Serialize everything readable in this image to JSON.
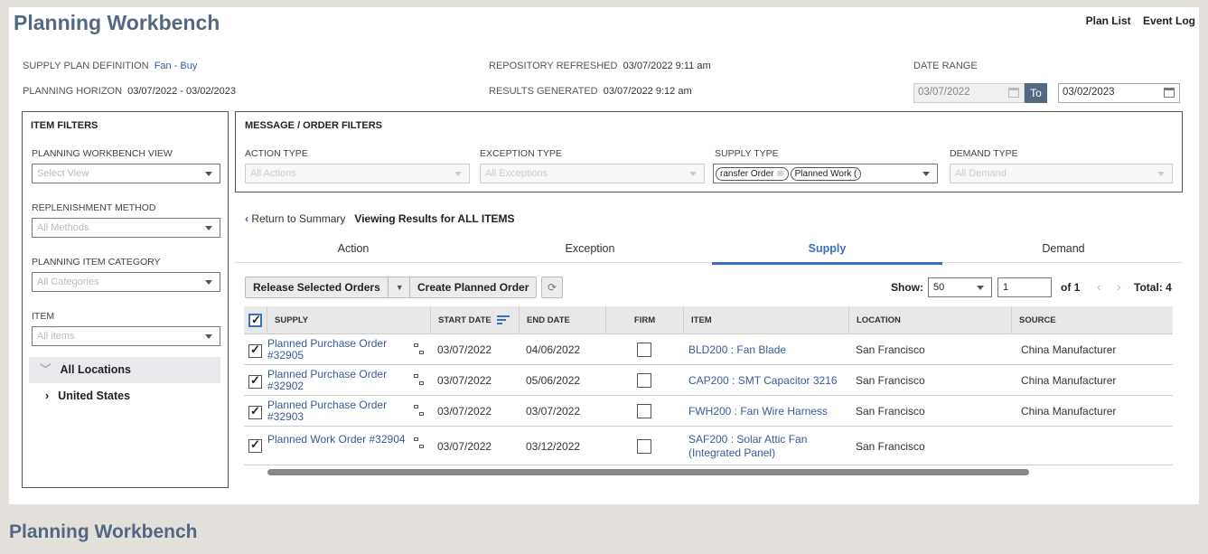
{
  "header": {
    "title": "Planning Workbench",
    "links": [
      "Plan List",
      "Event Log"
    ]
  },
  "meta": {
    "supply_plan_label": "SUPPLY PLAN DEFINITION",
    "supply_plan_value": "Fan - Buy",
    "horizon_label": "PLANNING HORIZON",
    "horizon_value": "03/07/2022 - 03/02/2023",
    "repo_label": "REPOSITORY REFRESHED",
    "repo_value": "03/07/2022 9:11 am",
    "results_label": "RESULTS GENERATED",
    "results_value": "03/07/2022 9:12 am",
    "date_range_label": "DATE RANGE",
    "date_from": "03/07/2022",
    "to_label": "To",
    "date_to": "03/02/2023"
  },
  "item_filters": {
    "title": "ITEM FILTERS",
    "view_label": "PLANNING WORKBENCH VIEW",
    "view_placeholder": "Select View",
    "method_label": "REPLENISHMENT METHOD",
    "method_placeholder": "All Methods",
    "category_label": "PLANNING ITEM CATEGORY",
    "category_placeholder": "All Categories",
    "item_label": "ITEM",
    "item_placeholder": "All items",
    "tree": [
      "All Locations",
      "United States"
    ]
  },
  "order_filters": {
    "title": "MESSAGE / ORDER FILTERS",
    "action_label": "ACTION TYPE",
    "action_placeholder": "All Actions",
    "exception_label": "EXCEPTION TYPE",
    "exception_placeholder": "All Exceptions",
    "supply_label": "SUPPLY TYPE",
    "supply_chips": [
      "ransfer Order",
      "Planned Work ("
    ],
    "demand_label": "DEMAND TYPE",
    "demand_placeholder": "All Demand"
  },
  "results": {
    "back_label": "Return to Summary",
    "viewing_label": "Viewing Results for ALL ITEMS",
    "tabs": [
      "Action",
      "Exception",
      "Supply",
      "Demand"
    ],
    "active_tab": "Supply"
  },
  "toolbar": {
    "release_label": "Release Selected Orders",
    "create_label": "Create Planned Order",
    "show_label": "Show:",
    "show_value": "50",
    "page_value": "1",
    "of_label": "of 1",
    "total_label": "Total: 4"
  },
  "grid": {
    "columns": [
      "SUPPLY",
      "START DATE",
      "END DATE",
      "FIRM",
      "ITEM",
      "LOCATION",
      "SOURCE"
    ],
    "rows": [
      {
        "supply1": "Planned Purchase Order",
        "supply2": "#32905",
        "start": "03/07/2022",
        "end": "04/06/2022",
        "item1": "BLD200 : Fan Blade",
        "item2": "",
        "location": "San Francisco",
        "source": "China Manufacturer",
        "checked": true,
        "firm": false
      },
      {
        "supply1": "Planned Purchase Order",
        "supply2": "#32902",
        "start": "03/07/2022",
        "end": "05/06/2022",
        "item1": "CAP200 : SMT Capacitor 3216",
        "item2": "",
        "location": "San Francisco",
        "source": "China Manufacturer",
        "checked": true,
        "firm": false
      },
      {
        "supply1": "Planned Purchase Order",
        "supply2": "#32903",
        "start": "03/07/2022",
        "end": "03/07/2022",
        "item1": "FWH200 : Fan Wire Harness",
        "item2": "",
        "location": "San Francisco",
        "source": "China Manufacturer",
        "checked": true,
        "firm": false
      },
      {
        "supply1": "Planned Work Order #32904",
        "supply2": "",
        "start": "03/07/2022",
        "end": "03/12/2022",
        "item1": "SAF200 : Solar Attic Fan",
        "item2": "(Integrated Panel)",
        "location": "San Francisco",
        "source": "",
        "checked": true,
        "firm": false
      }
    ]
  },
  "footer": {
    "title": "Planning Workbench"
  },
  "colors": {
    "accent": "#3b6fc2",
    "title": "#536883",
    "link": "#3a5a9a"
  }
}
